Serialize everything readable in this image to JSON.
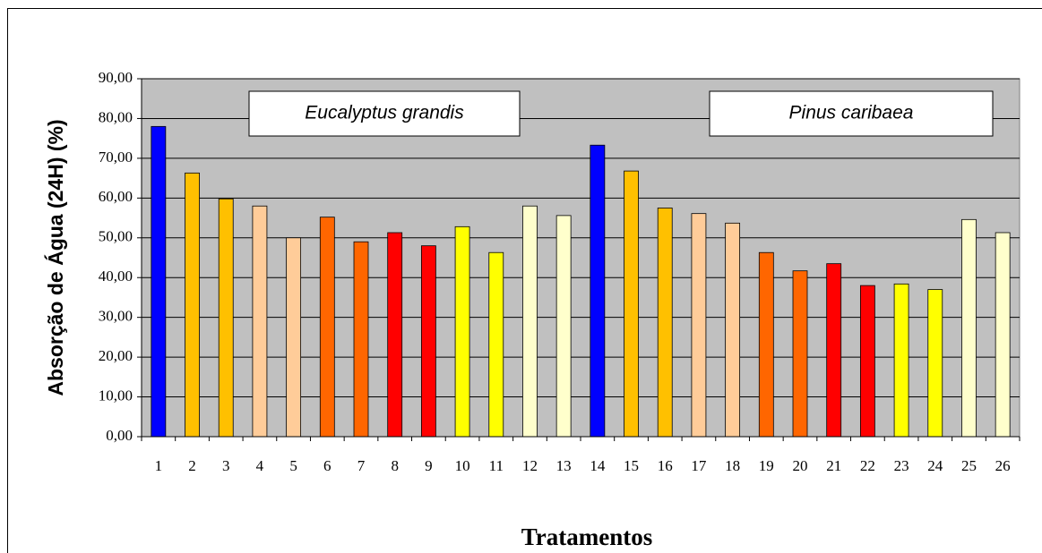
{
  "chart_data": {
    "type": "bar",
    "xlabel": "Tratamentos",
    "ylabel": "Absorção de Água (24H) (%)",
    "annotations": [
      "Eucalyptus grandis",
      "Pinus caribaea"
    ],
    "categories": [
      "1",
      "2",
      "3",
      "4",
      "5",
      "6",
      "7",
      "8",
      "9",
      "10",
      "11",
      "12",
      "13",
      "14",
      "15",
      "16",
      "17",
      "18",
      "19",
      "20",
      "21",
      "22",
      "23",
      "24",
      "25",
      "26"
    ],
    "values": [
      78.0,
      66.3,
      59.8,
      58.0,
      50.0,
      55.2,
      49.0,
      51.3,
      48.0,
      52.8,
      46.3,
      58.0,
      55.6,
      73.3,
      66.8,
      57.5,
      56.1,
      53.7,
      46.3,
      41.7,
      43.5,
      38.0,
      38.4,
      37.0,
      54.6,
      51.3
    ],
    "colors": [
      "#0000ff",
      "#ffc000",
      "#ffc000",
      "#ffcc99",
      "#ffcc99",
      "#ff6600",
      "#ff6600",
      "#ff0000",
      "#ff0000",
      "#ffff00",
      "#ffff00",
      "#ffffcc",
      "#ffffcc",
      "#0000ff",
      "#ffc000",
      "#ffc000",
      "#ffcc99",
      "#ffcc99",
      "#ff6600",
      "#ff6600",
      "#ff0000",
      "#ff0000",
      "#ffff00",
      "#ffff00",
      "#ffffcc",
      "#ffffcc"
    ],
    "ylim": [
      0,
      90
    ],
    "yticks": [
      {
        "value": 0,
        "label": "0,00"
      },
      {
        "value": 10,
        "label": "10,00"
      },
      {
        "value": 20,
        "label": "20,00"
      },
      {
        "value": 30,
        "label": "30,00"
      },
      {
        "value": 40,
        "label": "40,00"
      },
      {
        "value": 50,
        "label": "50,00"
      },
      {
        "value": 60,
        "label": "60,00"
      },
      {
        "value": 70,
        "label": "70,00"
      },
      {
        "value": 80,
        "label": "80,00"
      },
      {
        "value": 90,
        "label": "90,00"
      }
    ],
    "grid": true,
    "plot_background": "#c0c0c0"
  }
}
